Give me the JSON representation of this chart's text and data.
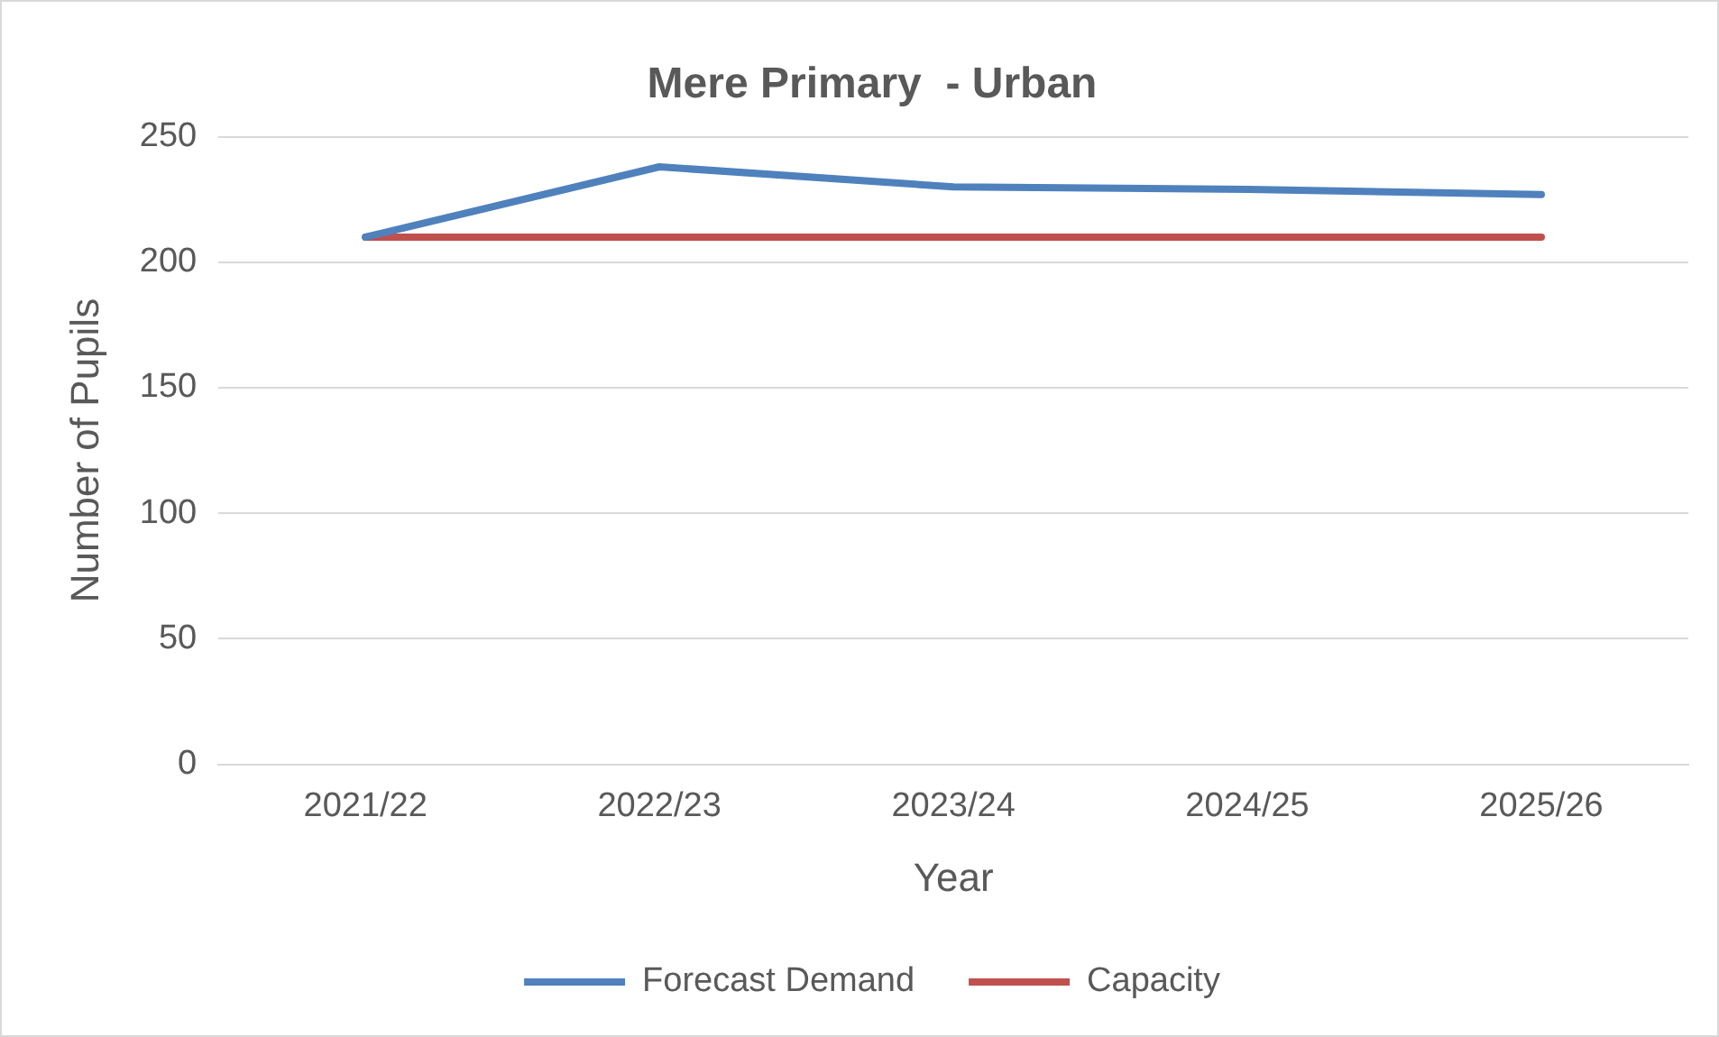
{
  "chart_data": {
    "type": "line",
    "title": "Mere Primary  - Urban",
    "xlabel": "Year",
    "ylabel": "Number of Pupils",
    "categories": [
      "2021/22",
      "2022/23",
      "2023/24",
      "2024/25",
      "2025/26"
    ],
    "series": [
      {
        "name": "Forecast Demand",
        "color": "#4f81bd",
        "values": [
          210,
          238,
          230,
          229,
          227
        ]
      },
      {
        "name": "Capacity",
        "color": "#c0504d",
        "values": [
          210,
          210,
          210,
          210,
          210
        ]
      }
    ],
    "ylim": [
      0,
      250
    ],
    "yticks": [
      0,
      50,
      100,
      150,
      200,
      250
    ],
    "grid": "y",
    "legend": "bottom",
    "marker": "none",
    "line_style": "solid"
  }
}
